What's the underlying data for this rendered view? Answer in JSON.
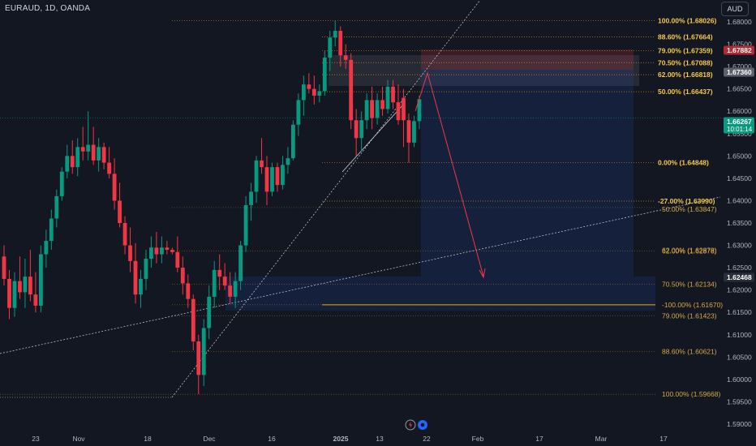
{
  "header": {
    "symbol": "EURAUD, 1D, OANDA",
    "currency_button": "AUD"
  },
  "chart_data": {
    "type": "candlestick",
    "title": "EURAUD, 1D, OANDA",
    "currency": "AUD",
    "x_axis_labels": [
      "23",
      "Nov",
      "18",
      "Dec",
      "16",
      "2025",
      "13",
      "22",
      "Feb",
      "17",
      "Mar",
      "17"
    ],
    "y_axis_labels": [
      "1.68000",
      "1.67500",
      "1.67000",
      "1.66500",
      "1.66000",
      "1.65500",
      "1.65000",
      "1.64500",
      "1.64000",
      "1.63500",
      "1.63000",
      "1.62500",
      "1.62000",
      "1.61500",
      "1.61000",
      "1.60500",
      "1.60000",
      "1.59500",
      "1.59000"
    ],
    "ylim": [
      1.5892,
      1.6836
    ],
    "price_tags": [
      {
        "label": "1.67882",
        "color": "#b22833"
      },
      {
        "label": "1.67360",
        "color": "#5d606b"
      },
      {
        "label": "1.66267",
        "sub": "10:01:14",
        "color": "#089981"
      },
      {
        "label": "1.62468",
        "color": "#2a2e39"
      }
    ],
    "fib_upper": [
      {
        "label": "100.00% (1.68026)",
        "value": 1.68026
      },
      {
        "label": "88.60% (1.67664)",
        "value": 1.67664
      },
      {
        "label": "79.00% (1.67359)",
        "value": 1.67359
      },
      {
        "label": "70.50% (1.67088)",
        "value": 1.67088
      },
      {
        "label": "62.00% (1.66818)",
        "value": 1.66818
      },
      {
        "label": "50.00% (1.66437)",
        "value": 1.66437
      },
      {
        "label": "0.00% (1.64848)",
        "value": 1.64848
      },
      {
        "label": "-27.00% (1.63990)",
        "value": 1.6399
      }
    ],
    "fib_lower": [
      {
        "label": "50.00% (1.63847)",
        "value": 1.63847
      },
      {
        "label": "62.00% (1.62878)",
        "value": 1.62878
      },
      {
        "label": "70.50% (1.62134)",
        "value": 1.62134
      },
      {
        "label": "-100.00% (1.61670)",
        "value": 1.6167
      },
      {
        "label": "79.00% (1.61423)",
        "value": 1.61423
      },
      {
        "label": "88.60% (1.60621)",
        "value": 1.60621
      },
      {
        "label": "100.00% (1.59668)",
        "value": 1.59668
      }
    ],
    "extra_fib_labels": [
      {
        "label": "62.00% (1.62878)",
        "value": 1.62878
      }
    ],
    "candles": [
      [
        1.6275,
        1.63,
        1.621,
        1.6225
      ],
      [
        1.6225,
        1.6245,
        1.6135,
        1.616
      ],
      [
        1.616,
        1.624,
        1.614,
        1.622
      ],
      [
        1.622,
        1.6275,
        1.618,
        1.6195
      ],
      [
        1.6195,
        1.627,
        1.616,
        1.623
      ],
      [
        1.623,
        1.629,
        1.6175,
        1.619
      ],
      [
        1.619,
        1.624,
        1.615,
        1.6165
      ],
      [
        1.6165,
        1.63,
        1.615,
        1.628
      ],
      [
        1.628,
        1.6335,
        1.625,
        1.631
      ],
      [
        1.631,
        1.638,
        1.629,
        1.636
      ],
      [
        1.636,
        1.6425,
        1.634,
        1.641
      ],
      [
        1.641,
        1.6475,
        1.64,
        1.6465
      ],
      [
        1.6465,
        1.6525,
        1.645,
        1.65
      ],
      [
        1.65,
        1.6535,
        1.646,
        1.6475
      ],
      [
        1.6475,
        1.654,
        1.6455,
        1.652
      ],
      [
        1.652,
        1.6565,
        1.649,
        1.651
      ],
      [
        1.651,
        1.66,
        1.649,
        1.6525
      ],
      [
        1.6525,
        1.6565,
        1.648,
        1.649
      ],
      [
        1.649,
        1.654,
        1.6465,
        1.652
      ],
      [
        1.652,
        1.653,
        1.647,
        1.6485
      ],
      [
        1.6485,
        1.652,
        1.645,
        1.646
      ],
      [
        1.646,
        1.6495,
        1.638,
        1.64
      ],
      [
        1.64,
        1.644,
        1.634,
        1.635
      ],
      [
        1.635,
        1.6365,
        1.628,
        1.63
      ],
      [
        1.63,
        1.634,
        1.624,
        1.6265
      ],
      [
        1.6265,
        1.6305,
        1.617,
        1.619
      ],
      [
        1.619,
        1.6245,
        1.616,
        1.6225
      ],
      [
        1.6225,
        1.629,
        1.62,
        1.627
      ],
      [
        1.627,
        1.632,
        1.625,
        1.6295
      ],
      [
        1.6295,
        1.633,
        1.626,
        1.628
      ],
      [
        1.628,
        1.632,
        1.626,
        1.6295
      ],
      [
        1.6295,
        1.631,
        1.628,
        1.629
      ],
      [
        1.629,
        1.6295,
        1.628,
        1.6285
      ],
      [
        1.6285,
        1.632,
        1.624,
        1.625
      ],
      [
        1.625,
        1.6275,
        1.619,
        1.6215
      ],
      [
        1.6215,
        1.6235,
        1.616,
        1.618
      ],
      [
        1.618,
        1.619,
        1.6065,
        1.6085
      ],
      [
        1.6085,
        1.61,
        1.5967,
        1.601
      ],
      [
        1.601,
        1.6135,
        1.5985,
        1.6115
      ],
      [
        1.6115,
        1.621,
        1.609,
        1.6185
      ],
      [
        1.6185,
        1.6265,
        1.616,
        1.6245
      ],
      [
        1.6245,
        1.628,
        1.62,
        1.623
      ],
      [
        1.623,
        1.626,
        1.62,
        1.621
      ],
      [
        1.621,
        1.624,
        1.617,
        1.6185
      ],
      [
        1.6185,
        1.624,
        1.616,
        1.622
      ],
      [
        1.622,
        1.631,
        1.62,
        1.63
      ],
      [
        1.63,
        1.641,
        1.6285,
        1.639
      ],
      [
        1.639,
        1.644,
        1.6355,
        1.642
      ],
      [
        1.642,
        1.65,
        1.6395,
        1.649
      ],
      [
        1.649,
        1.654,
        1.646,
        1.6475
      ],
      [
        1.6475,
        1.65,
        1.639,
        1.642
      ],
      [
        1.642,
        1.6485,
        1.641,
        1.6475
      ],
      [
        1.6475,
        1.6485,
        1.642,
        1.6435
      ],
      [
        1.6435,
        1.65,
        1.6425,
        1.648
      ],
      [
        1.648,
        1.652,
        1.646,
        1.6495
      ],
      [
        1.6495,
        1.658,
        1.649,
        1.657
      ],
      [
        1.657,
        1.664,
        1.6545,
        1.6625
      ],
      [
        1.6625,
        1.668,
        1.659,
        1.666
      ],
      [
        1.666,
        1.6685,
        1.664,
        1.665
      ],
      [
        1.665,
        1.668,
        1.6615,
        1.6635
      ],
      [
        1.6635,
        1.666,
        1.662,
        1.6645
      ],
      [
        1.6645,
        1.6735,
        1.6635,
        1.672
      ],
      [
        1.672,
        1.678,
        1.669,
        1.6765
      ],
      [
        1.6765,
        1.6803,
        1.6745,
        1.678
      ],
      [
        1.678,
        1.679,
        1.67,
        1.6725
      ],
      [
        1.6725,
        1.675,
        1.6695,
        1.6715
      ],
      [
        1.6715,
        1.673,
        1.656,
        1.658
      ],
      [
        1.658,
        1.6605,
        1.65,
        1.654
      ],
      [
        1.654,
        1.66,
        1.651,
        1.658
      ],
      [
        1.658,
        1.664,
        1.656,
        1.6625
      ],
      [
        1.6625,
        1.6655,
        1.656,
        1.6585
      ],
      [
        1.6585,
        1.664,
        1.657,
        1.6625
      ],
      [
        1.6625,
        1.6655,
        1.659,
        1.6605
      ],
      [
        1.6605,
        1.667,
        1.6595,
        1.6655
      ],
      [
        1.6655,
        1.667,
        1.6605,
        1.662
      ],
      [
        1.662,
        1.666,
        1.657,
        1.658
      ],
      [
        1.663,
        1.665,
        1.652,
        1.658
      ],
      [
        1.658,
        1.6595,
        1.6485,
        1.653
      ],
      [
        1.653,
        1.659,
        1.652,
        1.6578
      ],
      [
        1.6578,
        1.6635,
        1.656,
        1.6627
      ]
    ]
  }
}
